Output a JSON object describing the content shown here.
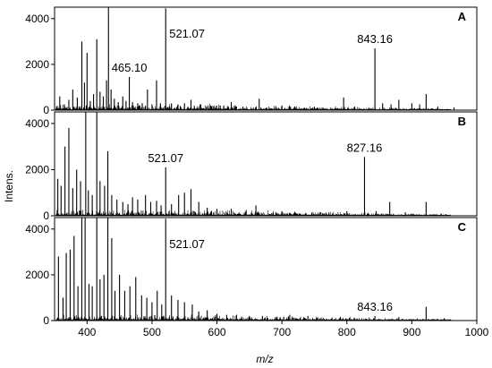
{
  "chart_data": {
    "type": "line",
    "xlabel": "m/z",
    "ylabel": "Intens.",
    "xlim": [
      350,
      1000
    ],
    "x_ticks": [
      400,
      500,
      600,
      700,
      800,
      900,
      1000
    ],
    "y_ticks": [
      0,
      2000,
      4000
    ],
    "panels": [
      {
        "panel": "A",
        "ylim": [
          0,
          4500
        ],
        "annotations": [
          {
            "text": "465.10",
            "x": 465.1
          },
          {
            "text": "521.07",
            "x": 521.07
          },
          {
            "text": "843.16",
            "x": 843.16
          }
        ],
        "peaks": [
          [
            358,
            600
          ],
          [
            365,
            250
          ],
          [
            372,
            450
          ],
          [
            378,
            900
          ],
          [
            385,
            550
          ],
          [
            392,
            3000
          ],
          [
            396,
            1200
          ],
          [
            400,
            2500
          ],
          [
            405,
            400
          ],
          [
            410,
            700
          ],
          [
            415,
            3100
          ],
          [
            420,
            800
          ],
          [
            425,
            600
          ],
          [
            430,
            1300
          ],
          [
            433,
            4500
          ],
          [
            437,
            900
          ],
          [
            442,
            500
          ],
          [
            448,
            350
          ],
          [
            455,
            600
          ],
          [
            460,
            400
          ],
          [
            465.1,
            1450
          ],
          [
            470,
            350
          ],
          [
            478,
            300
          ],
          [
            485,
            300
          ],
          [
            493,
            900
          ],
          [
            500,
            250
          ],
          [
            507,
            1300
          ],
          [
            513,
            300
          ],
          [
            521.07,
            4450
          ],
          [
            530,
            300
          ],
          [
            540,
            250
          ],
          [
            550,
            300
          ],
          [
            560,
            450
          ],
          [
            575,
            250
          ],
          [
            590,
            200
          ],
          [
            605,
            200
          ],
          [
            622,
            350
          ],
          [
            640,
            150
          ],
          [
            665,
            500
          ],
          [
            700,
            200
          ],
          [
            720,
            150
          ],
          [
            750,
            150
          ],
          [
            795,
            550
          ],
          [
            812,
            150
          ],
          [
            843.16,
            2700
          ],
          [
            855,
            300
          ],
          [
            868,
            250
          ],
          [
            880,
            450
          ],
          [
            900,
            300
          ],
          [
            912,
            250
          ],
          [
            922,
            700
          ],
          [
            940,
            150
          ],
          [
            965,
            120
          ]
        ]
      },
      {
        "panel": "B",
        "ylim": [
          0,
          4500
        ],
        "annotations": [
          {
            "text": "521.07",
            "x": 521.07
          },
          {
            "text": "827.16",
            "x": 827.16
          }
        ],
        "peaks": [
          [
            355,
            1600
          ],
          [
            360,
            1300
          ],
          [
            366,
            3000
          ],
          [
            372,
            3800
          ],
          [
            378,
            1200
          ],
          [
            384,
            2000
          ],
          [
            390,
            1500
          ],
          [
            398,
            4500
          ],
          [
            402,
            1100
          ],
          [
            408,
            900
          ],
          [
            415,
            4500
          ],
          [
            420,
            1500
          ],
          [
            427,
            1300
          ],
          [
            432,
            2800
          ],
          [
            438,
            900
          ],
          [
            446,
            700
          ],
          [
            455,
            600
          ],
          [
            463,
            500
          ],
          [
            470,
            800
          ],
          [
            478,
            700
          ],
          [
            490,
            900
          ],
          [
            498,
            600
          ],
          [
            507,
            650
          ],
          [
            514,
            450
          ],
          [
            521.07,
            2100
          ],
          [
            530,
            500
          ],
          [
            541,
            900
          ],
          [
            550,
            1000
          ],
          [
            560,
            1150
          ],
          [
            572,
            600
          ],
          [
            585,
            350
          ],
          [
            600,
            300
          ],
          [
            622,
            300
          ],
          [
            645,
            250
          ],
          [
            660,
            450
          ],
          [
            700,
            200
          ],
          [
            760,
            150
          ],
          [
            800,
            200
          ],
          [
            827.16,
            2550
          ],
          [
            845,
            200
          ],
          [
            866,
            600
          ],
          [
            890,
            150
          ],
          [
            922,
            600
          ],
          [
            945,
            100
          ]
        ]
      },
      {
        "panel": "C",
        "ylim": [
          0,
          4500
        ],
        "annotations": [
          {
            "text": "521.07",
            "x": 521.07
          },
          {
            "text": "843.16",
            "x": 843.16
          }
        ],
        "peaks": [
          [
            356,
            2800
          ],
          [
            363,
            1000
          ],
          [
            368,
            2950
          ],
          [
            374,
            3100
          ],
          [
            380,
            3700
          ],
          [
            386,
            1500
          ],
          [
            392,
            4500
          ],
          [
            397,
            4500
          ],
          [
            403,
            1600
          ],
          [
            408,
            1500
          ],
          [
            415,
            4500
          ],
          [
            420,
            1800
          ],
          [
            426,
            2000
          ],
          [
            432,
            4500
          ],
          [
            438,
            3600
          ],
          [
            443,
            1300
          ],
          [
            450,
            2000
          ],
          [
            458,
            1300
          ],
          [
            466,
            1500
          ],
          [
            475,
            1900
          ],
          [
            484,
            1100
          ],
          [
            492,
            1000
          ],
          [
            500,
            800
          ],
          [
            508,
            1300
          ],
          [
            515,
            700
          ],
          [
            521.07,
            4450
          ],
          [
            530,
            1100
          ],
          [
            540,
            900
          ],
          [
            550,
            800
          ],
          [
            562,
            700
          ],
          [
            572,
            400
          ],
          [
            585,
            450
          ],
          [
            600,
            300
          ],
          [
            615,
            250
          ],
          [
            630,
            250
          ],
          [
            650,
            200
          ],
          [
            670,
            200
          ],
          [
            690,
            150
          ],
          [
            712,
            250
          ],
          [
            740,
            200
          ],
          [
            790,
            150
          ],
          [
            843.16,
            200
          ],
          [
            880,
            150
          ],
          [
            922,
            600
          ],
          [
            950,
            100
          ]
        ]
      }
    ]
  }
}
